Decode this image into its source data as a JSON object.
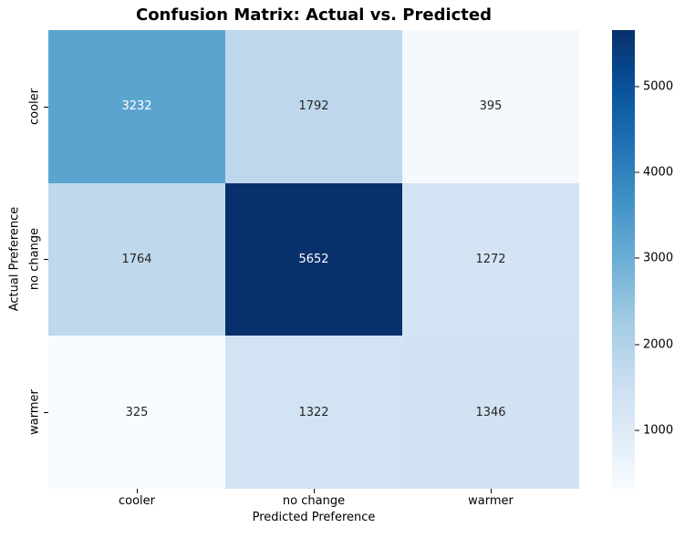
{
  "figure": {
    "title": "Confusion Matrix: Actual vs. Predicted"
  },
  "chart_data": {
    "type": "heatmap",
    "title": "Confusion Matrix: Actual vs. Predicted",
    "xlabel": "Predicted Preference",
    "ylabel": "Actual Preference",
    "x_categories": [
      "cooler",
      "no change",
      "warmer"
    ],
    "y_categories": [
      "cooler",
      "no change",
      "warmer"
    ],
    "matrix": [
      [
        3232,
        1792,
        395
      ],
      [
        1764,
        5652,
        1272
      ],
      [
        325,
        1322,
        1346
      ]
    ],
    "vmin": 325,
    "vmax": 5652,
    "colormap": "Blues",
    "colormap_stops": [
      "#F7FBFF",
      "#DEEBF7",
      "#C6DBEF",
      "#9ECAE1",
      "#6BAED6",
      "#4292C6",
      "#2171B5",
      "#08519C",
      "#08306B"
    ],
    "colorbar_ticks": [
      1000,
      2000,
      3000,
      4000,
      5000
    ],
    "legend_position": "right-colorbar",
    "grid": false,
    "cells": [
      {
        "row": "cooler",
        "col": "cooler",
        "value": 3232,
        "bg": "#5CA4D0",
        "fg": "#FFFFFF"
      },
      {
        "row": "cooler",
        "col": "no change",
        "value": 1792,
        "bg": "#BED7EC",
        "fg": "#262626"
      },
      {
        "row": "cooler",
        "col": "warmer",
        "value": 395,
        "bg": "#F4F9FE",
        "fg": "#262626"
      },
      {
        "row": "no change",
        "col": "cooler",
        "value": 1764,
        "bg": "#BFD8EC",
        "fg": "#262626"
      },
      {
        "row": "no change",
        "col": "no change",
        "value": 5652,
        "bg": "#08306B",
        "fg": "#FFFFFF"
      },
      {
        "row": "no change",
        "col": "warmer",
        "value": 1272,
        "bg": "#D4E4F4",
        "fg": "#262626"
      },
      {
        "row": "warmer",
        "col": "cooler",
        "value": 325,
        "bg": "#F7FBFF",
        "fg": "#262626"
      },
      {
        "row": "warmer",
        "col": "no change",
        "value": 1322,
        "bg": "#D2E3F3",
        "fg": "#262626"
      },
      {
        "row": "warmer",
        "col": "warmer",
        "value": 1346,
        "bg": "#D1E3F3",
        "fg": "#262626"
      }
    ]
  }
}
